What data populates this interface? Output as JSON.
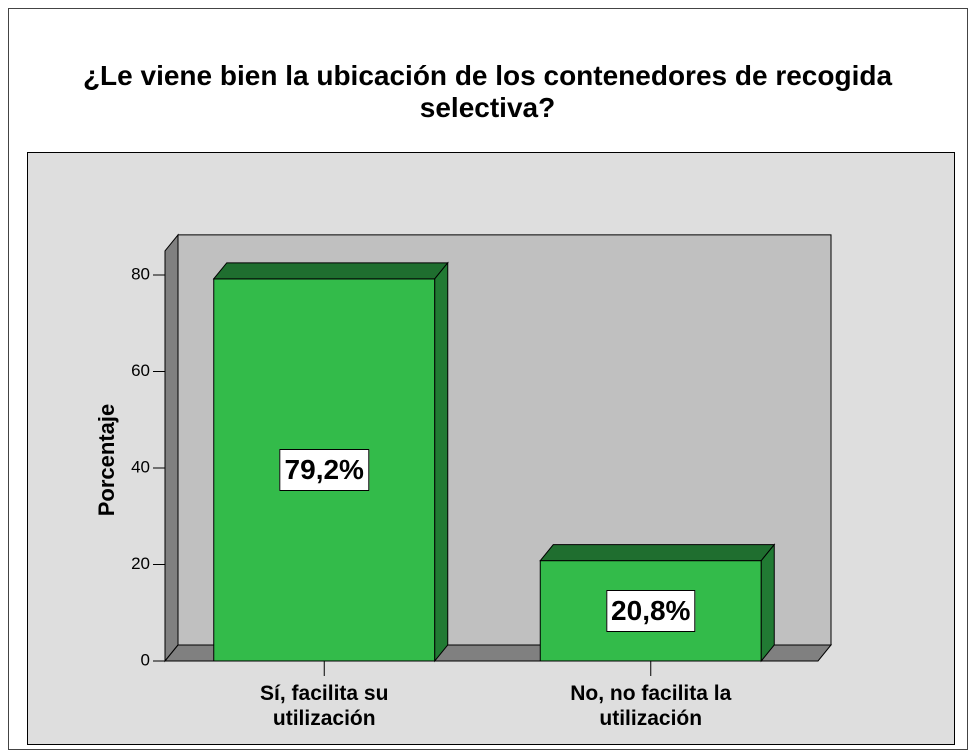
{
  "chart_data": {
    "type": "bar3d",
    "title": "¿Le viene bien la ubicación de los contenedores de recogida selectiva?",
    "ylabel": "Porcentaje",
    "categories": [
      "Sí, facilita su utilización",
      "No, no facilita la utilización"
    ],
    "values": [
      79.2,
      20.8
    ],
    "value_labels": [
      "79,2%",
      "20,8%"
    ],
    "color": "#33bb4a",
    "ylim": [
      0,
      85
    ],
    "yticks": [
      0,
      20,
      40,
      60,
      80
    ]
  }
}
